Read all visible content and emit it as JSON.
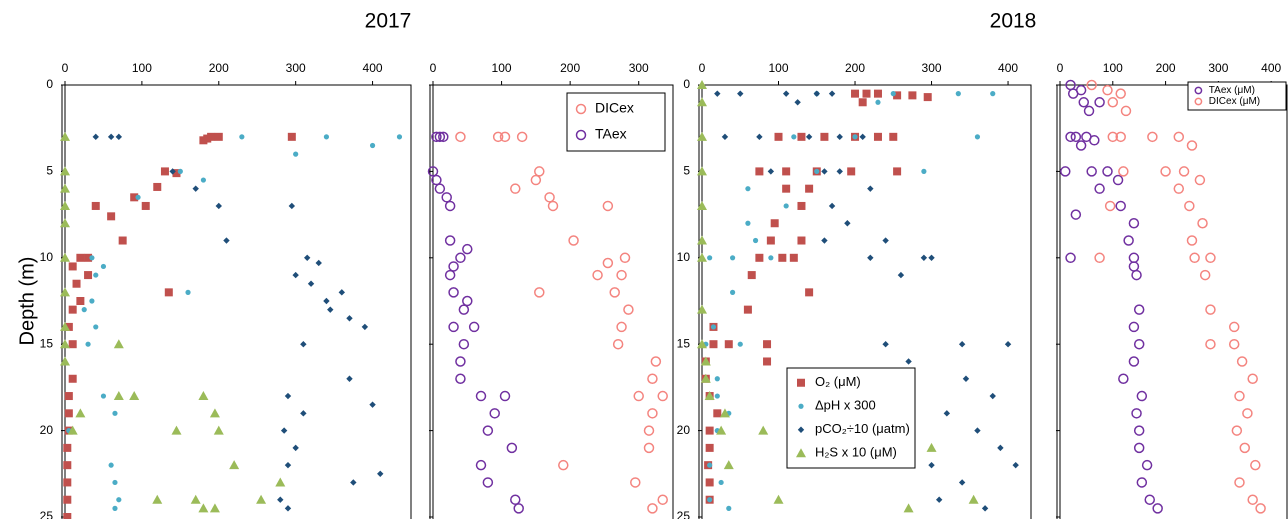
{
  "chart_data": [
    {
      "type": "scatter",
      "title": "2017",
      "ylabel": "Depth (m)",
      "xlim": [
        0,
        450
      ],
      "ylim": [
        0,
        25
      ],
      "xticks": [
        0,
        100,
        200,
        300,
        400
      ],
      "yticks": [
        0,
        5,
        10,
        15,
        20,
        25
      ],
      "y_inverted": true,
      "series": [
        {
          "color": "#c0504d",
          "marker": "square",
          "x": [
            190,
            200,
            185,
            180,
            295,
            130,
            145,
            120,
            90,
            40,
            105,
            60,
            75,
            20,
            30,
            10,
            30,
            15,
            135,
            20,
            10,
            5,
            10,
            10,
            5,
            5,
            5,
            3,
            3,
            3,
            3,
            3
          ],
          "values": [
            3.0,
            3.0,
            3.1,
            3.2,
            3.0,
            5.0,
            5.1,
            5.9,
            6.5,
            7.0,
            7.0,
            7.6,
            9.0,
            10.0,
            10.0,
            10.5,
            11.0,
            11.5,
            12.0,
            12.5,
            13.0,
            14.0,
            15.0,
            17.0,
            18.0,
            19.0,
            20.0,
            21.0,
            22.0,
            23.0,
            24.0,
            25.0
          ]
        },
        {
          "color": "#4bacc6",
          "marker": "circle",
          "x": [
            230,
            340,
            435,
            400,
            300,
            150,
            180,
            95,
            35,
            50,
            40,
            160,
            35,
            25,
            40,
            30,
            50,
            65,
            5,
            60,
            65,
            70,
            65
          ],
          "values": [
            3,
            3,
            3,
            3.5,
            4,
            5,
            5.5,
            6.5,
            10,
            10.5,
            11,
            12,
            12.5,
            13,
            14,
            15,
            18,
            19,
            20,
            22,
            23,
            24,
            24.5
          ]
        },
        {
          "color": "#1f4e79",
          "marker": "diamond",
          "x": [
            40,
            60,
            70,
            140,
            170,
            200,
            295,
            210,
            315,
            330,
            300,
            320,
            360,
            340,
            345,
            370,
            390,
            310,
            370,
            290,
            400,
            310,
            285,
            300,
            290,
            410,
            375,
            280,
            290
          ],
          "values": [
            3,
            3,
            3,
            5,
            6,
            7,
            7,
            9,
            10,
            10.3,
            11,
            11.5,
            12,
            12.5,
            13,
            13.5,
            14,
            15,
            17,
            18,
            18.5,
            19,
            20,
            21,
            22,
            22.5,
            23,
            24,
            24.5
          ]
        },
        {
          "color": "#9bbb59",
          "marker": "triangle",
          "x": [
            0,
            0,
            0,
            0,
            0,
            0,
            0,
            0,
            70,
            0,
            0,
            70,
            90,
            180,
            20,
            10,
            200,
            145,
            195,
            220,
            120,
            255,
            170,
            195,
            180,
            280
          ],
          "values": [
            3,
            5,
            6,
            7,
            8,
            10,
            12,
            14,
            15,
            15,
            16,
            18,
            18,
            18,
            19,
            20,
            20,
            20,
            19,
            22,
            24,
            24,
            24,
            24.5,
            24.5,
            23
          ]
        }
      ]
    },
    {
      "type": "scatter",
      "legend": "upper right",
      "xlim": [
        0,
        350
      ],
      "ylim": [
        0,
        25
      ],
      "xticks": [
        0,
        100,
        200,
        300
      ],
      "yticks": [
        0,
        5,
        10,
        15,
        20,
        25
      ],
      "y_inverted": true,
      "series": [
        {
          "name": "DICex",
          "color": "#f4847f",
          "marker": "open-circle",
          "x": [
            95,
            130,
            40,
            105,
            155,
            150,
            120,
            170,
            175,
            255,
            205,
            280,
            255,
            275,
            240,
            155,
            265,
            285,
            275,
            270,
            325,
            320,
            300,
            335,
            320,
            315,
            315,
            190,
            295,
            335,
            320
          ],
          "values": [
            3,
            3,
            3,
            3,
            5,
            5.5,
            6,
            6.5,
            7,
            7,
            9,
            10,
            10.3,
            11,
            11,
            12,
            12,
            13,
            14,
            15,
            16,
            17,
            18,
            18,
            19,
            20,
            21,
            22,
            23,
            24,
            24.5
          ]
        },
        {
          "name": "TAex",
          "color": "#7030a0",
          "marker": "open-circle",
          "x": [
            5,
            10,
            15,
            0,
            5,
            10,
            20,
            25,
            25,
            50,
            40,
            30,
            25,
            30,
            50,
            45,
            60,
            30,
            45,
            40,
            40,
            70,
            105,
            90,
            80,
            115,
            70,
            80,
            120,
            125
          ],
          "values": [
            3,
            3,
            3,
            5,
            5.5,
            6,
            6.5,
            7,
            9,
            9.5,
            10,
            10.5,
            11,
            12,
            12.5,
            13,
            14,
            14,
            15,
            16,
            17,
            18,
            18,
            19,
            20,
            21,
            22,
            23,
            24,
            24.5
          ]
        }
      ]
    },
    {
      "type": "scatter",
      "title": "2018",
      "legend": "lower center",
      "xlim": [
        0,
        430
      ],
      "ylim": [
        0,
        25
      ],
      "xticks": [
        0,
        100,
        200,
        300,
        400
      ],
      "yticks": [
        0,
        5,
        10,
        15,
        20,
        25
      ],
      "y_inverted": true,
      "series": [
        {
          "name": "O₂ (μM)",
          "color": "#c0504d",
          "marker": "square",
          "x": [
            200,
            215,
            230,
            255,
            275,
            295,
            210,
            100,
            130,
            160,
            200,
            230,
            250,
            75,
            110,
            150,
            195,
            255,
            110,
            140,
            130,
            95,
            90,
            130,
            75,
            105,
            120,
            65,
            140,
            60,
            15,
            15,
            35,
            85,
            5,
            85,
            5,
            10,
            20,
            10,
            10,
            8,
            10,
            10
          ],
          "values": [
            0.5,
            0.5,
            0.5,
            0.6,
            0.6,
            0.7,
            1,
            3,
            3,
            3,
            3,
            3,
            3,
            5,
            5,
            5,
            5,
            5,
            6,
            6,
            7,
            8,
            9,
            9,
            10,
            10,
            10,
            11,
            12,
            13,
            14,
            15,
            15,
            15,
            16,
            16,
            17,
            18,
            19,
            20,
            21,
            22,
            23,
            24
          ]
        },
        {
          "name": "ΔpH x 300",
          "color": "#4bacc6",
          "marker": "circle",
          "x": [
            150,
            250,
            335,
            380,
            230,
            120,
            200,
            360,
            150,
            290,
            60,
            110,
            60,
            70,
            10,
            40,
            90,
            40,
            15,
            5,
            50,
            20,
            20,
            35,
            20,
            10,
            25,
            10,
            35
          ],
          "values": [
            0.5,
            0.5,
            0.5,
            0.5,
            1,
            3,
            3,
            3,
            5,
            5,
            6,
            7,
            8,
            9,
            10,
            10,
            10,
            12,
            14,
            15,
            15,
            17,
            18,
            19,
            20,
            22,
            23,
            24,
            24.5
          ]
        },
        {
          "name": "pCO₂÷10 (μatm)",
          "color": "#1f4e79",
          "marker": "diamond",
          "x": [
            20,
            50,
            110,
            150,
            170,
            125,
            30,
            75,
            140,
            180,
            210,
            90,
            160,
            180,
            220,
            170,
            190,
            160,
            240,
            220,
            290,
            300,
            260,
            240,
            340,
            400,
            270,
            345,
            380,
            320,
            360,
            390,
            300,
            410,
            340,
            310,
            370
          ],
          "values": [
            0.5,
            0.5,
            0.5,
            0.5,
            0.5,
            1,
            3,
            3,
            3,
            3,
            3,
            5,
            5,
            5,
            6,
            7,
            8,
            9,
            9,
            10,
            10,
            10,
            11,
            15,
            15,
            15,
            16,
            17,
            18,
            19,
            20,
            21,
            22,
            22,
            23,
            24,
            24.5
          ]
        },
        {
          "name": "H₂S x 10 (μM)",
          "color": "#9bbb59",
          "marker": "triangle",
          "x": [
            0,
            0,
            0,
            0,
            0,
            0,
            0,
            0,
            0,
            5,
            5,
            10,
            30,
            25,
            80,
            300,
            35,
            100,
            270,
            355
          ],
          "values": [
            0,
            1,
            3,
            5,
            7,
            9,
            10,
            13,
            15,
            16,
            17,
            18,
            19,
            20,
            20,
            21,
            22,
            24,
            24.5,
            24
          ]
        }
      ]
    },
    {
      "type": "scatter",
      "legend": "upper right",
      "xlim": [
        0,
        430
      ],
      "ylim": [
        0,
        25
      ],
      "xticks": [
        0,
        100,
        200,
        300,
        400
      ],
      "yticks": [
        0,
        5,
        10,
        15,
        20,
        25
      ],
      "y_inverted": true,
      "series": [
        {
          "name": "TAex (μM)",
          "color": "#7030a0",
          "marker": "open-circle",
          "x": [
            20,
            40,
            25,
            45,
            75,
            55,
            20,
            30,
            50,
            65,
            40,
            10,
            60,
            90,
            110,
            75,
            115,
            30,
            140,
            130,
            140,
            20,
            140,
            145,
            150,
            140,
            150,
            140,
            120,
            155,
            145,
            150,
            150,
            165,
            155,
            170,
            185
          ],
          "values": [
            0,
            0.3,
            0.5,
            1,
            1,
            1.5,
            3,
            3,
            3,
            3.2,
            3.5,
            5,
            5,
            5,
            5.5,
            6,
            7,
            7.5,
            8,
            9,
            10,
            10,
            10.5,
            11,
            13,
            14,
            15,
            16,
            17,
            18,
            19,
            20,
            21,
            22,
            23,
            24,
            24.5
          ]
        },
        {
          "name": "DICex (μM)",
          "color": "#f4847f",
          "marker": "open-circle",
          "x": [
            60,
            90,
            115,
            100,
            125,
            100,
            115,
            175,
            225,
            250,
            120,
            200,
            235,
            265,
            225,
            95,
            245,
            270,
            250,
            75,
            255,
            285,
            275,
            285,
            330,
            285,
            330,
            345,
            365,
            340,
            355,
            335,
            350,
            370,
            340,
            365,
            380
          ],
          "values": [
            0,
            0.3,
            0.5,
            1,
            1.5,
            3,
            3,
            3,
            3,
            3.5,
            5,
            5,
            5,
            5.5,
            6,
            7,
            7,
            8,
            9,
            10,
            10,
            10,
            11,
            13,
            14,
            15,
            15,
            16,
            17,
            18,
            19,
            20,
            21,
            22,
            23,
            24,
            24.5
          ]
        }
      ]
    }
  ]
}
